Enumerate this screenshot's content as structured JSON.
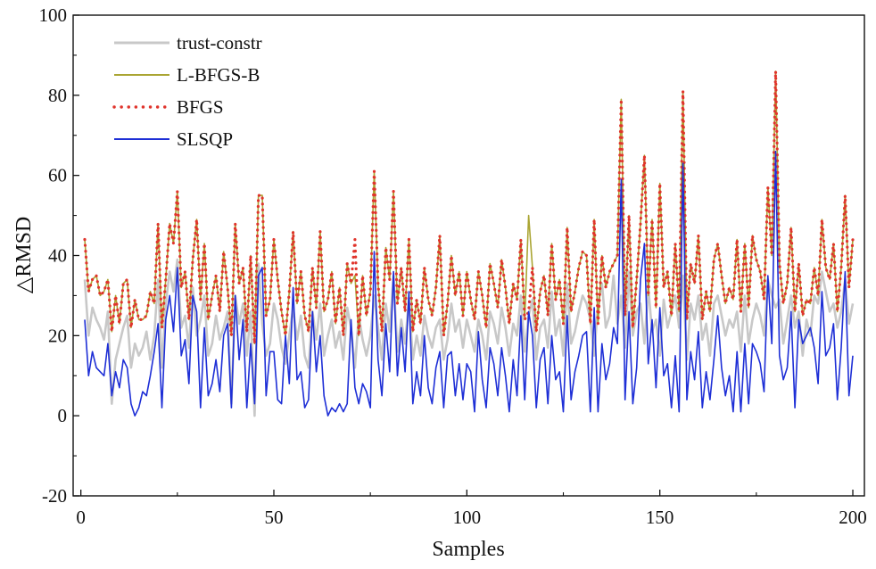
{
  "chart_data": {
    "type": "line",
    "title": "",
    "xlabel": "Samples",
    "ylabel": "△RMSD",
    "xlim": [
      -2,
      203
    ],
    "ylim": [
      -20,
      100
    ],
    "x_ticks": [
      0,
      50,
      100,
      150,
      200
    ],
    "y_ticks": [
      -20,
      0,
      20,
      40,
      60,
      80,
      100
    ],
    "grid": false,
    "legend_position": "top-left",
    "x": [
      1,
      2,
      3,
      4,
      5,
      6,
      7,
      8,
      9,
      10,
      11,
      12,
      13,
      14,
      15,
      16,
      17,
      18,
      19,
      20,
      21,
      22,
      23,
      24,
      25,
      26,
      27,
      28,
      29,
      30,
      31,
      32,
      33,
      34,
      35,
      36,
      37,
      38,
      39,
      40,
      41,
      42,
      43,
      44,
      45,
      46,
      47,
      48,
      49,
      50,
      51,
      52,
      53,
      54,
      55,
      56,
      57,
      58,
      59,
      60,
      61,
      62,
      63,
      64,
      65,
      66,
      67,
      68,
      69,
      70,
      71,
      72,
      73,
      74,
      75,
      76,
      77,
      78,
      79,
      80,
      81,
      82,
      83,
      84,
      85,
      86,
      87,
      88,
      89,
      90,
      91,
      92,
      93,
      94,
      95,
      96,
      97,
      98,
      99,
      100,
      101,
      102,
      103,
      104,
      105,
      106,
      107,
      108,
      109,
      110,
      111,
      112,
      113,
      114,
      115,
      116,
      117,
      118,
      119,
      120,
      121,
      122,
      123,
      124,
      125,
      126,
      127,
      128,
      129,
      130,
      131,
      132,
      133,
      134,
      135,
      136,
      137,
      138,
      139,
      140,
      141,
      142,
      143,
      144,
      145,
      146,
      147,
      148,
      149,
      150,
      151,
      152,
      153,
      154,
      155,
      156,
      157,
      158,
      159,
      160,
      161,
      162,
      163,
      164,
      165,
      166,
      167,
      168,
      169,
      170,
      171,
      172,
      173,
      174,
      175,
      176,
      177,
      178,
      179,
      180,
      181,
      182,
      183,
      184,
      185,
      186,
      187,
      188,
      189,
      190,
      191,
      192,
      193,
      194,
      195,
      196,
      197,
      198,
      199,
      200
    ],
    "series": [
      {
        "name": "trust-constr",
        "color": "#c8c8c8",
        "style": "solid",
        "values": [
          34,
          20,
          27,
          24,
          22,
          19,
          26,
          3,
          14,
          18,
          22,
          25,
          12,
          18,
          15,
          17,
          21,
          14,
          20,
          34,
          12,
          28,
          36,
          31,
          39,
          22,
          25,
          17,
          32,
          20,
          24,
          30,
          15,
          18,
          25,
          19,
          22,
          26,
          3,
          30,
          23,
          28,
          15,
          26,
          0,
          38,
          23,
          15,
          18,
          28,
          24,
          17,
          13,
          20,
          27,
          19,
          25,
          15,
          12,
          26,
          19,
          28,
          15,
          20,
          24,
          17,
          21,
          14,
          27,
          22,
          12,
          25,
          19,
          15,
          20,
          30,
          22,
          14,
          28,
          21,
          35,
          16,
          24,
          18,
          29,
          14,
          20,
          15,
          25,
          20,
          17,
          22,
          24,
          14,
          19,
          28,
          21,
          24,
          17,
          24,
          20,
          16,
          24,
          20,
          14,
          26,
          23,
          18,
          27,
          22,
          15,
          23,
          20,
          30,
          16,
          25,
          29,
          14,
          22,
          24,
          17,
          31,
          20,
          24,
          15,
          33,
          18,
          21,
          26,
          30,
          28,
          24,
          15,
          28,
          33,
          22,
          25,
          35,
          23,
          30,
          17,
          36,
          20,
          26,
          28,
          18,
          32,
          21,
          24,
          15,
          29,
          22,
          26,
          30,
          22,
          35,
          14,
          28,
          24,
          30,
          19,
          23,
          15,
          28,
          30,
          25,
          20,
          24,
          22,
          26,
          16,
          30,
          18,
          24,
          28,
          25,
          20,
          34,
          30,
          27,
          29,
          18,
          24,
          30,
          22,
          26,
          15,
          24,
          20,
          30,
          28,
          36,
          31,
          26,
          28,
          22,
          26,
          34,
          23,
          28
        ]
      },
      {
        "name": "L-BFGS-B",
        "color": "#aaa533",
        "style": "solid",
        "values": [
          44,
          31,
          34,
          35,
          30,
          31,
          34,
          21,
          30,
          23,
          33,
          34,
          22,
          29,
          24,
          24,
          25,
          31,
          28,
          48,
          22,
          34,
          48,
          43,
          56,
          32,
          36,
          24,
          39,
          49,
          29,
          43,
          24,
          30,
          35,
          26,
          41,
          32,
          20,
          48,
          33,
          37,
          21,
          40,
          18,
          55,
          55,
          25,
          29,
          44,
          34,
          26,
          20,
          31,
          46,
          28,
          36,
          25,
          21,
          37,
          27,
          46,
          26,
          29,
          36,
          23,
          32,
          20,
          38,
          33,
          35,
          20,
          35,
          25,
          31,
          61,
          33,
          21,
          42,
          34,
          56,
          28,
          37,
          26,
          44,
          21,
          29,
          23,
          37,
          29,
          25,
          32,
          45,
          20,
          28,
          40,
          30,
          36,
          25,
          36,
          29,
          24,
          36,
          30,
          22,
          38,
          33,
          27,
          39,
          32,
          23,
          33,
          29,
          44,
          24,
          50,
          37,
          21,
          31,
          35,
          25,
          43,
          29,
          34,
          23,
          47,
          26,
          31,
          37,
          41,
          40,
          23,
          49,
          23,
          40,
          32,
          36,
          38,
          40,
          79,
          25,
          50,
          22,
          34,
          48,
          65,
          30,
          49,
          27,
          58,
          32,
          36,
          25,
          43,
          26,
          81,
          24,
          38,
          33,
          45,
          24,
          31,
          26,
          39,
          43,
          35,
          28,
          32,
          29,
          44,
          26,
          43,
          27,
          45,
          39,
          36,
          29,
          57,
          40,
          86,
          38,
          28,
          33,
          47,
          26,
          38,
          25,
          29,
          28,
          37,
          30,
          49,
          37,
          34,
          43,
          26,
          37,
          55,
          32,
          44
        ]
      },
      {
        "name": "BFGS",
        "color": "#e0342c",
        "style": "dotted",
        "values": [
          44,
          31,
          34,
          35,
          30,
          31,
          34,
          21,
          30,
          23,
          33,
          34,
          22,
          29,
          24,
          24,
          25,
          31,
          28,
          48,
          22,
          34,
          48,
          43,
          56,
          32,
          36,
          24,
          39,
          49,
          29,
          43,
          24,
          30,
          35,
          26,
          41,
          32,
          20,
          48,
          33,
          37,
          21,
          40,
          18,
          55,
          55,
          25,
          29,
          44,
          34,
          26,
          20,
          31,
          46,
          28,
          36,
          25,
          21,
          37,
          27,
          46,
          26,
          29,
          36,
          23,
          32,
          20,
          38,
          33,
          44,
          20,
          35,
          25,
          31,
          61,
          33,
          21,
          42,
          34,
          56,
          28,
          37,
          26,
          44,
          21,
          29,
          23,
          37,
          29,
          25,
          32,
          45,
          20,
          28,
          40,
          30,
          36,
          25,
          36,
          29,
          24,
          36,
          30,
          22,
          38,
          33,
          27,
          39,
          32,
          23,
          33,
          29,
          44,
          24,
          26,
          37,
          21,
          31,
          35,
          25,
          43,
          29,
          34,
          23,
          47,
          26,
          31,
          37,
          41,
          40,
          23,
          49,
          23,
          40,
          32,
          36,
          38,
          40,
          79,
          25,
          50,
          22,
          34,
          48,
          65,
          30,
          49,
          27,
          58,
          32,
          36,
          25,
          43,
          26,
          81,
          24,
          38,
          33,
          45,
          24,
          31,
          26,
          39,
          43,
          35,
          28,
          32,
          29,
          44,
          26,
          43,
          27,
          45,
          39,
          36,
          29,
          57,
          40,
          86,
          38,
          28,
          33,
          47,
          26,
          38,
          25,
          29,
          28,
          37,
          30,
          49,
          37,
          34,
          43,
          26,
          37,
          55,
          32,
          44
        ]
      },
      {
        "name": "SLSQP",
        "color": "#1e2fd6",
        "style": "solid",
        "values": [
          24,
          10,
          16,
          12,
          11,
          10,
          18,
          5,
          11,
          7,
          14,
          12,
          3,
          0,
          2,
          6,
          5,
          10,
          16,
          23,
          2,
          24,
          30,
          21,
          37,
          15,
          19,
          8,
          30,
          26,
          2,
          22,
          5,
          8,
          14,
          6,
          20,
          23,
          2,
          30,
          14,
          24,
          2,
          18,
          3,
          35,
          37,
          5,
          16,
          16,
          4,
          3,
          20,
          8,
          32,
          9,
          11,
          2,
          4,
          26,
          11,
          20,
          5,
          0,
          2,
          1,
          3,
          1,
          3,
          24,
          7,
          3,
          8,
          6,
          2,
          41,
          14,
          5,
          23,
          11,
          36,
          10,
          22,
          11,
          31,
          3,
          11,
          5,
          20,
          7,
          3,
          12,
          16,
          2,
          15,
          16,
          5,
          13,
          4,
          13,
          11,
          1,
          21,
          9,
          2,
          17,
          13,
          5,
          17,
          10,
          1,
          14,
          5,
          25,
          4,
          26,
          20,
          2,
          14,
          17,
          3,
          20,
          9,
          11,
          1,
          25,
          4,
          11,
          15,
          20,
          21,
          1,
          27,
          1,
          18,
          9,
          13,
          22,
          18,
          59,
          4,
          26,
          3,
          12,
          34,
          43,
          13,
          24,
          7,
          27,
          10,
          13,
          2,
          15,
          1,
          63,
          4,
          16,
          9,
          21,
          2,
          11,
          4,
          14,
          25,
          12,
          5,
          10,
          1,
          16,
          1,
          18,
          3,
          18,
          16,
          13,
          6,
          35,
          18,
          66,
          15,
          9,
          12,
          26,
          2,
          24,
          18,
          20,
          22,
          17,
          8,
          31,
          15,
          17,
          23,
          4,
          17,
          36,
          5,
          15
        ]
      }
    ]
  }
}
